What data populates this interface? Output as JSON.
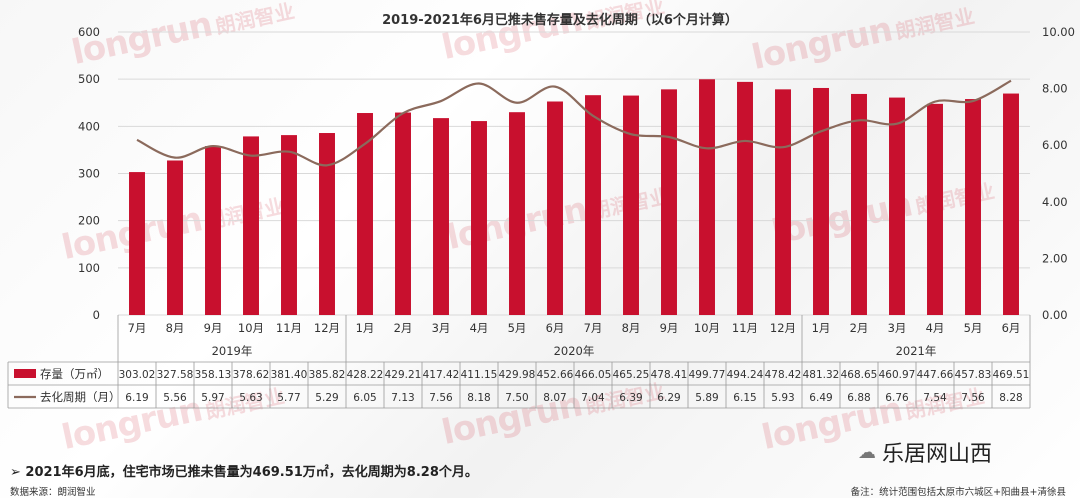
{
  "chart_data": {
    "type": "bar",
    "title": "2019-2021年6月已推未售存量及去化周期（以6个月计算）",
    "months": [
      "7月",
      "8月",
      "9月",
      "10月",
      "11月",
      "12月",
      "1月",
      "2月",
      "3月",
      "4月",
      "5月",
      "6月",
      "7月",
      "8月",
      "9月",
      "10月",
      "11月",
      "12月",
      "1月",
      "2月",
      "3月",
      "4月",
      "5月",
      "6月"
    ],
    "years": [
      {
        "label": "2019年",
        "start": 0,
        "end": 5
      },
      {
        "label": "2020年",
        "start": 6,
        "end": 17
      },
      {
        "label": "2021年",
        "start": 18,
        "end": 23
      }
    ],
    "series": [
      {
        "name": "存量（万㎡）",
        "type": "bar",
        "axis": "left",
        "color": "#c8102e",
        "values": [
          303.02,
          327.58,
          358.13,
          378.62,
          381.4,
          385.82,
          428.22,
          429.21,
          417.42,
          411.15,
          429.98,
          452.66,
          466.05,
          465.25,
          478.41,
          499.77,
          494.24,
          478.42,
          481.32,
          468.65,
          460.97,
          447.66,
          457.83,
          469.51
        ],
        "labels": [
          "303.02",
          "327.58",
          "358.13",
          "378.62",
          "381.40",
          "385.82",
          "428.22",
          "429.21",
          "417.42",
          "411.15",
          "429.98",
          "452.66",
          "466.05",
          "465.25",
          "478.41",
          "499.77",
          "494.24",
          "478.42",
          "481.32",
          "468.65",
          "460.97",
          "447.66",
          "457.83",
          "469.51"
        ]
      },
      {
        "name": "去化周期（月）",
        "type": "line",
        "axis": "right",
        "color": "#8b6a5c",
        "values": [
          6.19,
          5.56,
          5.97,
          5.63,
          5.77,
          5.29,
          6.05,
          7.13,
          7.56,
          8.18,
          7.5,
          8.07,
          7.04,
          6.39,
          6.29,
          5.89,
          6.15,
          5.93,
          6.49,
          6.88,
          6.76,
          7.54,
          7.56,
          8.28
        ],
        "labels": [
          "6.19",
          "5.56",
          "5.97",
          "5.63",
          "5.77",
          "5.29",
          "6.05",
          "7.13",
          "7.56",
          "8.18",
          "7.50",
          "8.07",
          "7.04",
          "6.39",
          "6.29",
          "5.89",
          "6.15",
          "5.93",
          "6.49",
          "6.88",
          "6.76",
          "7.54",
          "7.56",
          "8.28"
        ]
      }
    ],
    "y_left": {
      "range": [
        0,
        600
      ],
      "ticks": [
        "0",
        "100",
        "200",
        "300",
        "400",
        "500",
        "600"
      ]
    },
    "y_right": {
      "range": [
        0,
        10
      ],
      "ticks": [
        "0.00",
        "2.00",
        "4.00",
        "6.00",
        "8.00",
        "10.00"
      ]
    },
    "grid": true,
    "legend": "data-table"
  },
  "watermark": {
    "brand": "longrun",
    "brand_cn": "朗润智业"
  },
  "footer": {
    "main": "➢ 2021年6月底，住宅市场已推未售量为469.51万㎡，去化周期为8.28个月。",
    "source": "数据来源：朗润智业",
    "note": "备注：统计范围包括太原市六城区+阳曲县+清徐县"
  },
  "wechat": {
    "name": "乐居网山西"
  }
}
